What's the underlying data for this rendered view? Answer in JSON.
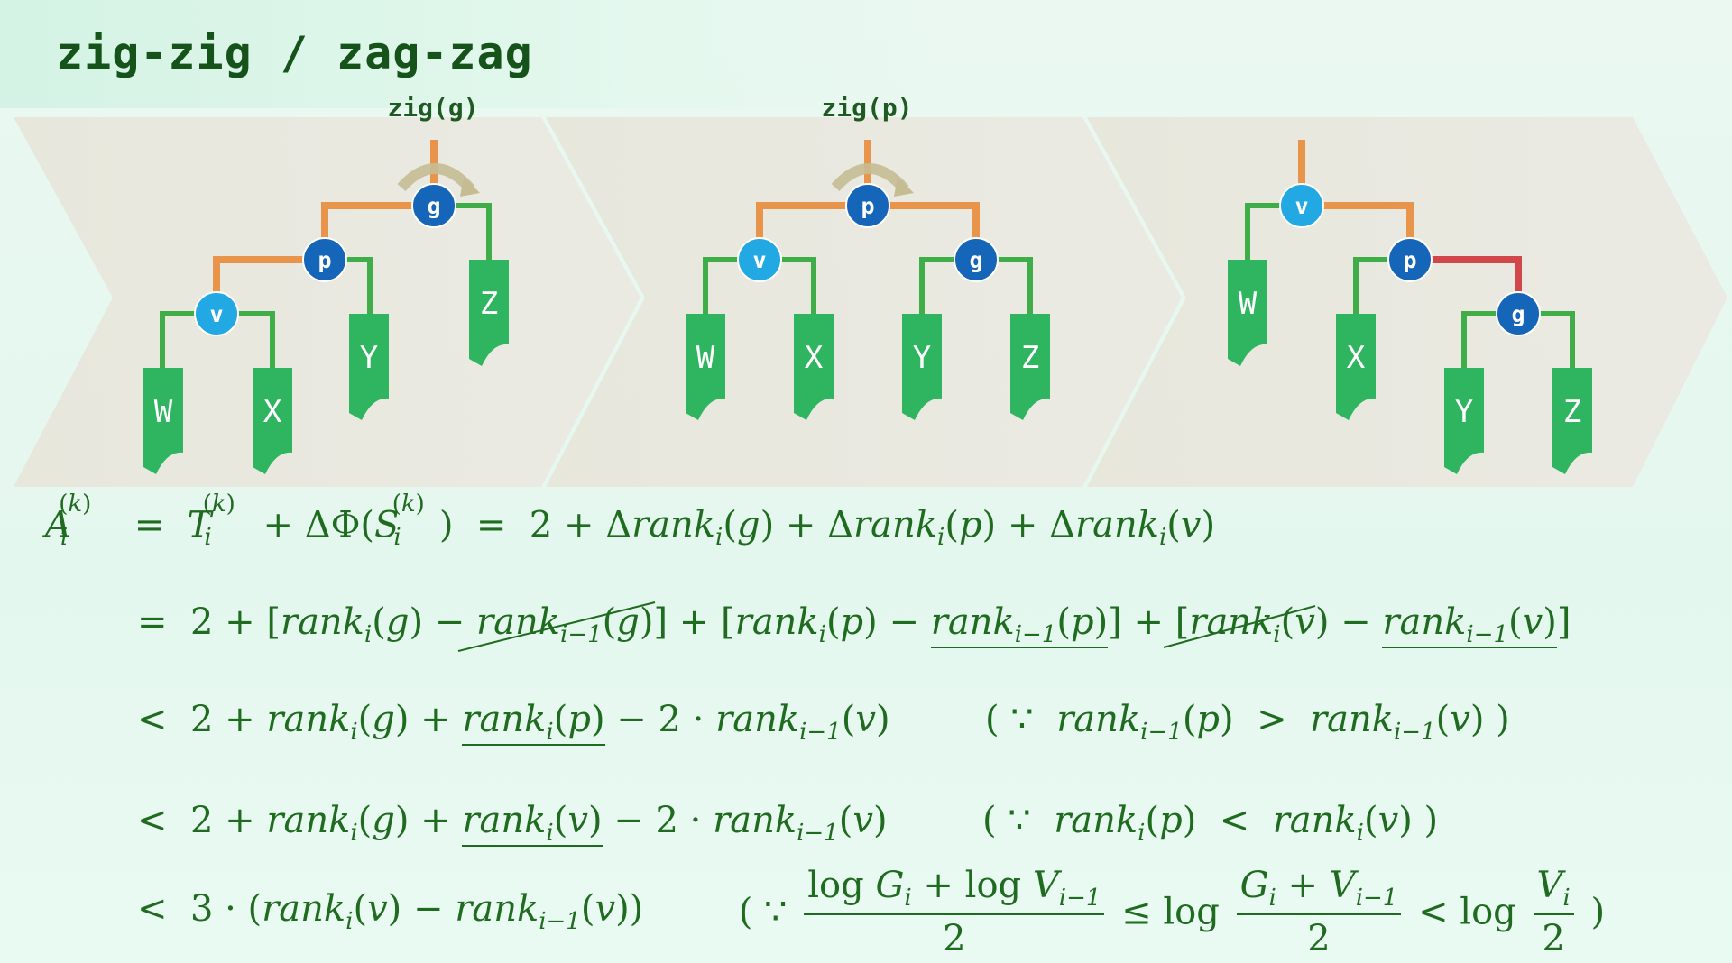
{
  "title": "zig-zig / zag-zag",
  "panels": [
    {
      "op_label": "zig(g)",
      "nodes": {
        "top": "g",
        "mid": "p",
        "low": "v"
      },
      "leaves": [
        "W",
        "X",
        "Y",
        "Z"
      ]
    },
    {
      "op_label": "zig(p)",
      "nodes": {
        "top": "p",
        "left": "v",
        "right": "g"
      },
      "leaves": [
        "W",
        "X",
        "Y",
        "Z"
      ]
    },
    {
      "op_label": "",
      "nodes": {
        "top": "v",
        "mid": "p",
        "low": "g"
      },
      "leaves": [
        "W",
        "X",
        "Y",
        "Z"
      ]
    }
  ],
  "colors": {
    "edge_orange": "#e8944a",
    "edge_green": "#3fae49",
    "edge_red": "#d2484a",
    "leaf_green": "#2fb560",
    "node_dark": "#1565b8",
    "node_light": "#22a8e2",
    "text_green": "#1f6b1f"
  }
}
